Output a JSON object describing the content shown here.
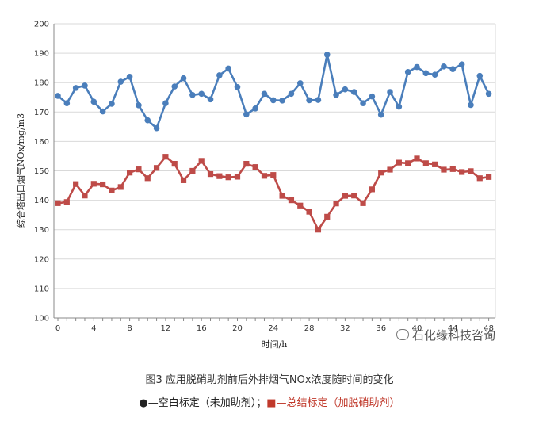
{
  "chart_data": {
    "type": "line",
    "xlabel": "时间/h",
    "ylabel": "综合塔出口烟气NOx/mg/m3",
    "ylim": [
      100,
      200
    ],
    "yticks": [
      100,
      110,
      120,
      130,
      140,
      150,
      160,
      170,
      180,
      190,
      200
    ],
    "xlim": [
      0,
      49
    ],
    "xticks": [
      0,
      4,
      8,
      12,
      16,
      20,
      24,
      28,
      32,
      36,
      40,
      44,
      48
    ],
    "x": [
      0,
      1,
      2,
      3,
      4,
      5,
      6,
      7,
      8,
      9,
      10,
      11,
      12,
      13,
      14,
      15,
      16,
      17,
      18,
      19,
      20,
      21,
      22,
      23,
      24,
      25,
      26,
      27,
      28,
      29,
      30,
      31,
      32,
      33,
      34,
      35,
      36,
      37,
      38,
      39,
      40,
      41,
      42,
      43,
      44,
      45,
      46,
      47,
      48
    ],
    "series": [
      {
        "name": "空白标定（未加助剂）",
        "color": "#4a7ebb",
        "marker": "circle",
        "values": [
          175.5,
          173,
          178.2,
          179,
          173.5,
          170.2,
          172.8,
          180.3,
          182,
          172.3,
          167.2,
          164.5,
          173,
          178.7,
          181.5,
          175.8,
          176.2,
          174.3,
          182.5,
          184.8,
          178.5,
          169.2,
          171.2,
          176.2,
          174,
          173.9,
          176.2,
          179.8,
          174,
          174.1,
          189.5,
          175.8,
          177.7,
          176.8,
          173,
          175.3,
          169.1,
          176.8,
          171.8,
          183.6,
          185.3,
          183.2,
          182.7,
          185.5,
          184.6,
          186.2,
          172.4,
          182.3,
          176.2
        ]
      },
      {
        "name": "总结标定（加脱硝助剂）",
        "color": "#be4b48",
        "marker": "square",
        "values": [
          139,
          139.4,
          145.5,
          141.6,
          145.6,
          145.4,
          143.3,
          144.5,
          149.4,
          150.5,
          147.5,
          151,
          154.8,
          152.4,
          146.8,
          150,
          153.4,
          148.9,
          148.2,
          147.8,
          148,
          152.4,
          151.3,
          148.3,
          148.6,
          141.5,
          140,
          138.2,
          136.1,
          130,
          134.4,
          138.9,
          141.5,
          141.6,
          139,
          143.7,
          149.4,
          150.4,
          152.8,
          152.6,
          154.2,
          152.6,
          152.2,
          150.4,
          150.6,
          149.6,
          149.9,
          147.5,
          147.9
        ]
      }
    ]
  },
  "caption": {
    "title": "图3  应用脱硝助剂前后外排烟气NOx浓度随时间的变化",
    "legend_blue": "●—空白标定（未加助剂）；",
    "legend_red": "■—总结标定（加脱硝助剂）"
  },
  "watermark": "石化缘科技咨询"
}
